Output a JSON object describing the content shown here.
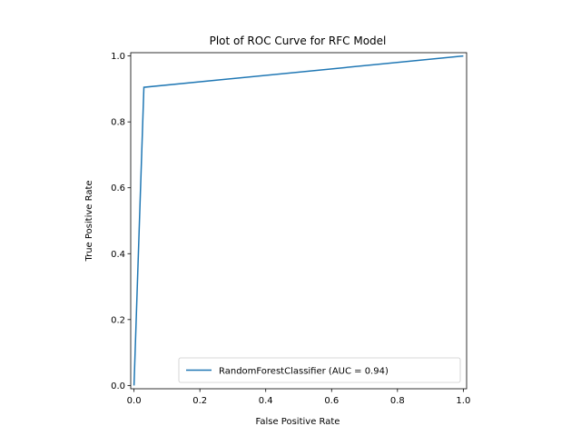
{
  "chart_data": {
    "type": "line",
    "title": "Plot of ROC Curve for RFC Model",
    "xlabel": "False Positive Rate",
    "ylabel": "True Positive Rate",
    "xlim": [
      -0.01,
      1.01
    ],
    "ylim": [
      -0.01,
      1.01
    ],
    "xticks": [
      0.0,
      0.2,
      0.4,
      0.6,
      0.8,
      1.0
    ],
    "yticks": [
      0.0,
      0.2,
      0.4,
      0.6,
      0.8,
      1.0
    ],
    "xtick_labels": [
      "0.0",
      "0.2",
      "0.4",
      "0.6",
      "0.8",
      "1.0"
    ],
    "ytick_labels": [
      "0.0",
      "0.2",
      "0.4",
      "0.6",
      "0.8",
      "1.0"
    ],
    "grid": false,
    "legend_position": "lower right",
    "series": [
      {
        "name": "RandomForestClassifier (AUC = 0.94)",
        "color": "#1f77b4",
        "x": [
          0.0,
          0.03,
          1.0
        ],
        "y": [
          0.0,
          0.905,
          1.0
        ]
      }
    ]
  }
}
